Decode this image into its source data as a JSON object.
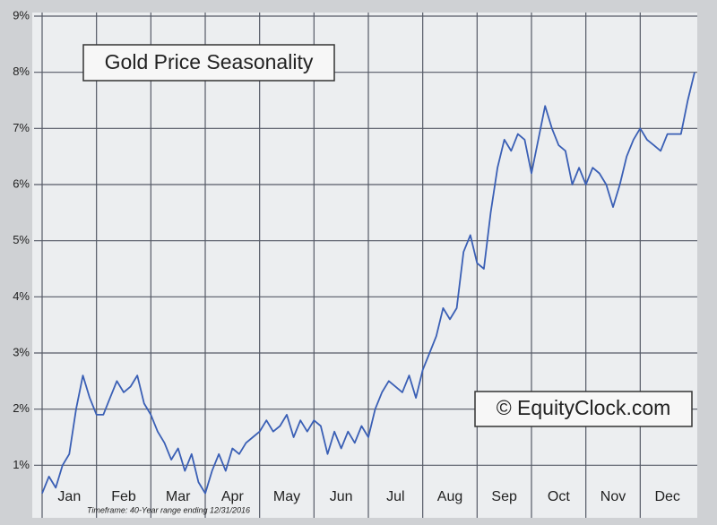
{
  "chart_data": {
    "type": "line",
    "title": "Gold Price Seasonality",
    "annotations": [
      "© EquityClock.com",
      "Timeframe: 40-Year range ending 12/31/2016"
    ],
    "xlim": [
      0,
      12
    ],
    "xticks": [
      {
        "value": 0,
        "label": "Jan"
      },
      {
        "value": 1,
        "label": "Feb"
      },
      {
        "value": 2,
        "label": "Mar"
      },
      {
        "value": 3,
        "label": "Apr"
      },
      {
        "value": 4,
        "label": "May"
      },
      {
        "value": 5,
        "label": "Jun"
      },
      {
        "value": 6,
        "label": "Jul"
      },
      {
        "value": 7,
        "label": "Aug"
      },
      {
        "value": 8,
        "label": "Sep"
      },
      {
        "value": 9,
        "label": "Oct"
      },
      {
        "value": 10,
        "label": "Nov"
      },
      {
        "value": 11,
        "label": "Dec"
      }
    ],
    "ylim": [
      0,
      9
    ],
    "yticks": [
      {
        "value": 1,
        "label": "1%"
      },
      {
        "value": 2,
        "label": "2%"
      },
      {
        "value": 3,
        "label": "3%"
      },
      {
        "value": 4,
        "label": "4%"
      },
      {
        "value": 5,
        "label": "5%"
      },
      {
        "value": 6,
        "label": "6%"
      },
      {
        "value": 7,
        "label": "7%"
      },
      {
        "value": 8,
        "label": "8%"
      },
      {
        "value": 9,
        "label": "9%"
      }
    ],
    "grid": true,
    "x": [
      0,
      0.125,
      0.25,
      0.375,
      0.5,
      0.625,
      0.75,
      0.875,
      1,
      1.125,
      1.25,
      1.375,
      1.5,
      1.625,
      1.75,
      1.875,
      2,
      2.125,
      2.25,
      2.375,
      2.5,
      2.625,
      2.75,
      2.875,
      3,
      3.125,
      3.25,
      3.375,
      3.5,
      3.625,
      3.75,
      3.875,
      4,
      4.125,
      4.25,
      4.375,
      4.5,
      4.625,
      4.75,
      4.875,
      5,
      5.125,
      5.25,
      5.375,
      5.5,
      5.625,
      5.75,
      5.875,
      6,
      6.125,
      6.25,
      6.375,
      6.5,
      6.625,
      6.75,
      6.875,
      7,
      7.125,
      7.25,
      7.375,
      7.5,
      7.625,
      7.75,
      7.875,
      8,
      8.125,
      8.25,
      8.375,
      8.5,
      8.625,
      8.75,
      8.875,
      9,
      9.125,
      9.25,
      9.375,
      9.5,
      9.625,
      9.75,
      9.875,
      10,
      10.125,
      10.25,
      10.375,
      10.5,
      10.625,
      10.75,
      10.875,
      11,
      11.125,
      11.25,
      11.375,
      11.5,
      11.625,
      11.75,
      11.875,
      12
    ],
    "series": [
      {
        "color": "#3a5fb5",
        "values": [
          0.5,
          0.8,
          0.6,
          1.0,
          1.2,
          2.0,
          2.6,
          2.2,
          1.9,
          1.9,
          2.2,
          2.5,
          2.3,
          2.4,
          2.6,
          2.1,
          1.9,
          1.6,
          1.4,
          1.1,
          1.3,
          0.9,
          1.2,
          0.7,
          0.5,
          0.9,
          1.2,
          0.9,
          1.3,
          1.2,
          1.4,
          1.5,
          1.6,
          1.8,
          1.6,
          1.7,
          1.9,
          1.5,
          1.8,
          1.6,
          1.8,
          1.7,
          1.2,
          1.6,
          1.3,
          1.6,
          1.4,
          1.7,
          1.5,
          2.0,
          2.3,
          2.5,
          2.4,
          2.3,
          2.6,
          2.2,
          2.7,
          3.0,
          3.3,
          3.8,
          3.6,
          3.8,
          4.8,
          5.1,
          4.6,
          4.5,
          5.5,
          6.3,
          6.8,
          6.6,
          6.9,
          6.8,
          6.2,
          6.8,
          7.4,
          7.0,
          6.7,
          6.6,
          6.0,
          6.3,
          6.0,
          6.3,
          6.2,
          6.0,
          5.6,
          6.0,
          6.5,
          6.8,
          7.0,
          6.8,
          6.7,
          6.6,
          6.9,
          6.9,
          6.9,
          7.5,
          8.0
        ]
      }
    ]
  }
}
